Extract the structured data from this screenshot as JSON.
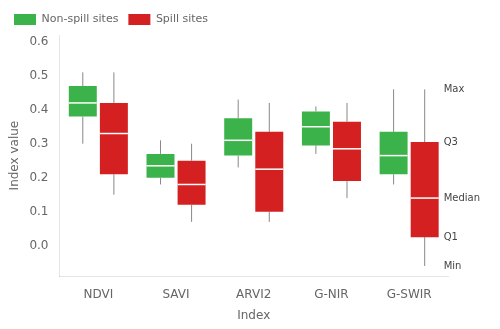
{
  "chart_data": {
    "type": "box",
    "xlabel": "Index",
    "ylabel": "Index value",
    "categories": [
      "NDVI",
      "SAVI",
      "ARVI2",
      "G-NIR",
      "G-SWIR"
    ],
    "series": [
      {
        "name": "Non-spill sites",
        "color": "#3cb34a",
        "values": [
          {
            "min": 0.3,
            "q1": 0.38,
            "median": 0.42,
            "q3": 0.47,
            "max": 0.51
          },
          {
            "min": 0.18,
            "q1": 0.2,
            "median": 0.235,
            "q3": 0.27,
            "max": 0.31
          },
          {
            "min": 0.23,
            "q1": 0.265,
            "median": 0.31,
            "q3": 0.375,
            "max": 0.43
          },
          {
            "min": 0.27,
            "q1": 0.295,
            "median": 0.35,
            "q3": 0.395,
            "max": 0.41
          },
          {
            "min": 0.18,
            "q1": 0.21,
            "median": 0.265,
            "q3": 0.335,
            "max": 0.46
          }
        ]
      },
      {
        "name": "Spill sites",
        "color": "#d42020",
        "values": [
          {
            "min": 0.15,
            "q1": 0.21,
            "median": 0.33,
            "q3": 0.42,
            "max": 0.51
          },
          {
            "min": 0.07,
            "q1": 0.12,
            "median": 0.18,
            "q3": 0.25,
            "max": 0.3
          },
          {
            "min": 0.07,
            "q1": 0.1,
            "median": 0.225,
            "q3": 0.335,
            "max": 0.42
          },
          {
            "min": 0.14,
            "q1": 0.19,
            "median": 0.285,
            "q3": 0.365,
            "max": 0.42
          },
          {
            "min": -0.06,
            "q1": 0.025,
            "median": 0.14,
            "q3": 0.305,
            "max": 0.46
          }
        ]
      }
    ],
    "annotations": [
      {
        "text": "Max",
        "x": "G-SWIR",
        "series": "Spill sites",
        "y": 0.46
      },
      {
        "text": "Q3",
        "x": "G-SWIR",
        "series": "Spill sites",
        "y": 0.305
      },
      {
        "text": "Median",
        "x": "G-SWIR",
        "series": "Spill sites",
        "y": 0.14
      },
      {
        "text": "Q1",
        "x": "G-SWIR",
        "series": "Spill sites",
        "y": 0.025
      },
      {
        "text": "Min",
        "x": "G-SWIR",
        "series": "Spill sites",
        "y": -0.06
      }
    ],
    "ylim": [
      -0.09,
      0.62
    ],
    "yticks": [
      {
        "value": 0.0,
        "label": "0.0"
      },
      0.1,
      0.2,
      0.3,
      0.4,
      0.5,
      0.6
    ],
    "grid": false,
    "legend": "upper left"
  }
}
